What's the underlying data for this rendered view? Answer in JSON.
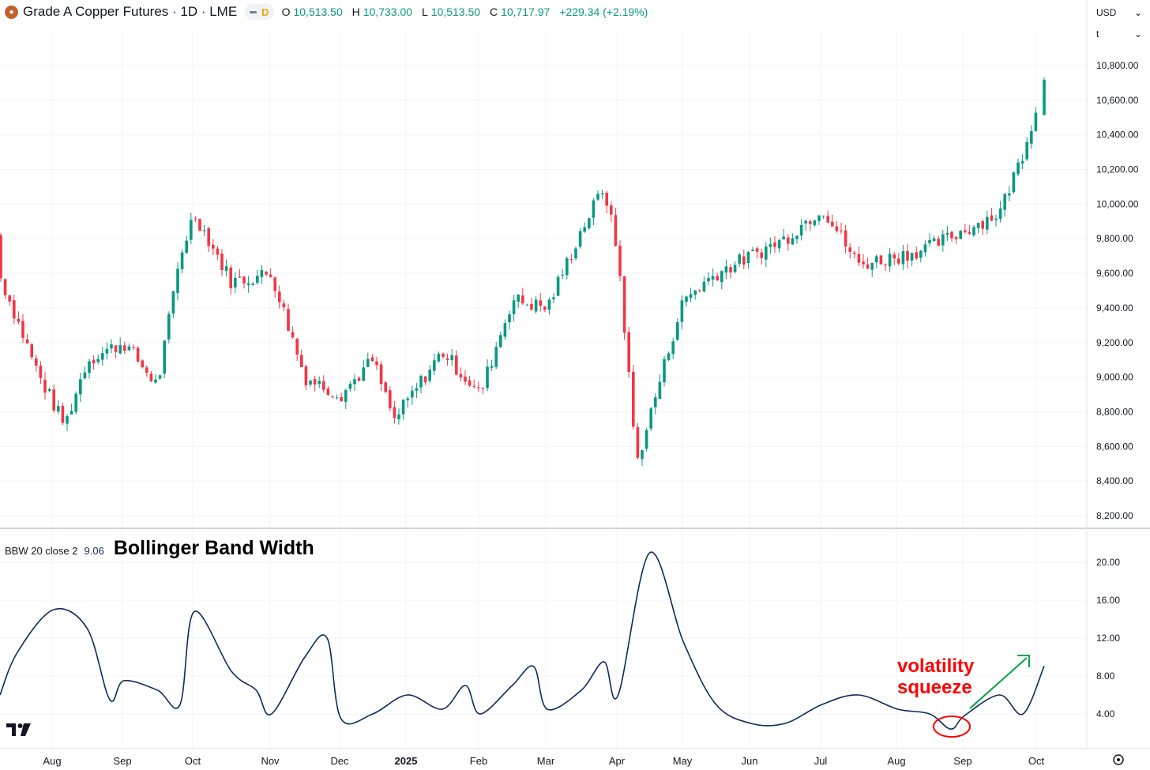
{
  "header": {
    "symbol_icon": "copper-coin-icon",
    "title": "Grade A Copper Futures · 1D · LME",
    "interval_badge": "D",
    "ohlc": {
      "o_label": "O",
      "o_value": "10,513.50",
      "h_label": "H",
      "h_value": "10,733.00",
      "l_label": "L",
      "l_value": "10,513.50",
      "c_label": "C",
      "c_value": "10,717.97",
      "change": "+229.34 (+2.19%)"
    }
  },
  "controls": {
    "currency": "USD",
    "unit": "t",
    "settings_icon": "gear-icon",
    "dropdown_icon": "chevron-down-icon"
  },
  "indicator": {
    "name": "BBW 20 close 2",
    "value": "9.06",
    "title": "Bollinger Band Width"
  },
  "annotation": {
    "line1": "volatility",
    "line2": "squeeze",
    "color": "#ff0000",
    "arrow_color": "#00a040"
  },
  "colors": {
    "up": "#089981",
    "down": "#f23645",
    "bbw_line": "#0d2a5c"
  },
  "chart_data": [
    {
      "type": "candlestick",
      "title": "Grade A Copper Futures · 1D · LME",
      "ylim": [
        8200,
        10800
      ],
      "yticks": [
        "8,200.00",
        "8,400.00",
        "8,600.00",
        "8,800.00",
        "9,000.00",
        "9,200.00",
        "9,400.00",
        "9,600.00",
        "9,800.00",
        "10,000.00",
        "10,200.00",
        "10,400.00",
        "10,600.00",
        "10,800.00"
      ],
      "x_labels": [
        "Aug",
        "Sep",
        "Oct",
        "Nov",
        "Dec",
        "2025",
        "Feb",
        "Mar",
        "Apr",
        "May",
        "Jun",
        "Jul",
        "Aug",
        "Sep",
        "Oct"
      ],
      "close_path": [
        [
          "Jul 2024 (start)",
          9820
        ],
        [
          "Jul 2024 (late)",
          9000
        ],
        [
          "Aug 2024 (early)",
          8720
        ],
        [
          "Aug 2024 (mid)",
          9100
        ],
        [
          "Sep 2024 (start)",
          9200
        ],
        [
          "Sep 2024 (mid)",
          8950
        ],
        [
          "Sep 2024 (late)",
          9700
        ],
        [
          "Oct 2024 (start)",
          9950
        ],
        [
          "Oct 2024 (mid)",
          9550
        ],
        [
          "Nov 2024 (start)",
          9600
        ],
        [
          "Nov 2024 (mid)",
          9000
        ],
        [
          "Dec 2024 (start)",
          8900
        ],
        [
          "Dec 2024 (mid)",
          9100
        ],
        [
          "Dec 2024 (late)",
          8750
        ],
        [
          "Jan 2025 (mid)",
          9150
        ],
        [
          "Feb 2025 (start)",
          8900
        ],
        [
          "Feb 2025 (mid)",
          9450
        ],
        [
          "Mar 2025 (start)",
          9400
        ],
        [
          "Mar 2025 (mid)",
          9850
        ],
        [
          "Mar 2025 (late)",
          10100
        ],
        [
          "Apr 2025 (start)",
          9700
        ],
        [
          "Apr 2025 (low)",
          8500
        ],
        [
          "Apr 2025 (late)",
          9200
        ],
        [
          "May 2025 (start)",
          9450
        ],
        [
          "May 2025 (mid)",
          9600
        ],
        [
          "Jun 2025 (start)",
          9700
        ],
        [
          "Jun 2025 (mid)",
          9800
        ],
        [
          "Jul 2025 (start)",
          9980
        ],
        [
          "Jul 2025 (mid)",
          9650
        ],
        [
          "Aug 2025 (start)",
          9700
        ],
        [
          "Aug 2025 (mid)",
          9750
        ],
        [
          "Sep 2025 (start)",
          9850
        ],
        [
          "Sep 2025 (mid)",
          9950
        ],
        [
          "Sep 2025 (late)",
          10300
        ],
        [
          "Oct 2025 (start)",
          10718
        ]
      ],
      "last_candle": {
        "open": 10513.5,
        "high": 10733.0,
        "low": 10513.5,
        "close": 10717.97
      },
      "grid": true
    },
    {
      "type": "line",
      "title": "Bollinger Band Width",
      "series": [
        {
          "name": "BBW 20 close 2"
        }
      ],
      "ylim": [
        1,
        22
      ],
      "yticks": [
        "4.00",
        "8.00",
        "12.00",
        "16.00",
        "20.00"
      ],
      "points": [
        [
          "Jul 2024 (start)",
          6.0
        ],
        [
          "Jul 2024 (mid)",
          10.5
        ],
        [
          "Aug 2024 (start)",
          15.0
        ],
        [
          "Aug 2024 (mid)",
          13.0
        ],
        [
          "Aug 2024 (late)",
          5.5
        ],
        [
          "Sep 2024 (start)",
          7.5
        ],
        [
          "Sep 2024 (mid)",
          6.5
        ],
        [
          "Sep 2024 (late)",
          5.0
        ],
        [
          "Oct 2024 (start)",
          14.8
        ],
        [
          "Oct 2024 (mid)",
          8.5
        ],
        [
          "Oct 2024 (late)",
          6.5
        ],
        [
          "Nov 2024 (start)",
          4.0
        ],
        [
          "Nov 2024 (mid)",
          10.0
        ],
        [
          "Nov 2024 (late)",
          12.0
        ],
        [
          "Dec 2024 (start)",
          3.5
        ],
        [
          "Dec 2024 (mid)",
          4.0
        ],
        [
          "Jan 2025 (start)",
          6.0
        ],
        [
          "Jan 2025 (mid)",
          4.5
        ],
        [
          "Jan 2025 (late)",
          7.0
        ],
        [
          "Feb 2025 (start)",
          4.0
        ],
        [
          "Feb 2025 (mid)",
          7.0
        ],
        [
          "Feb 2025 (late)",
          9.0
        ],
        [
          "Mar 2025 (start)",
          4.5
        ],
        [
          "Mar 2025 (mid)",
          6.5
        ],
        [
          "Mar 2025 (late)",
          9.5
        ],
        [
          "Apr 2025 (start)",
          6.0
        ],
        [
          "Apr 2025 (mid)",
          21.0
        ],
        [
          "May 2025 (start)",
          11.5
        ],
        [
          "May 2025 (mid)",
          5.0
        ],
        [
          "Jun 2025 (start)",
          3.0
        ],
        [
          "Jun 2025 (mid)",
          3.0
        ],
        [
          "Jul 2025 (start)",
          5.0
        ],
        [
          "Jul 2025 (mid)",
          6.0
        ],
        [
          "Aug 2025 (start)",
          4.5
        ],
        [
          "Aug 2025 (mid)",
          4.0
        ],
        [
          "Aug 2025 (late)",
          2.4
        ],
        [
          "Sep 2025 (start)",
          3.8
        ],
        [
          "Sep 2025 (mid)",
          6.0
        ],
        [
          "Sep 2025 (late)",
          4.0
        ],
        [
          "Oct 2025 (start)",
          9.06
        ]
      ],
      "grid": true
    }
  ]
}
